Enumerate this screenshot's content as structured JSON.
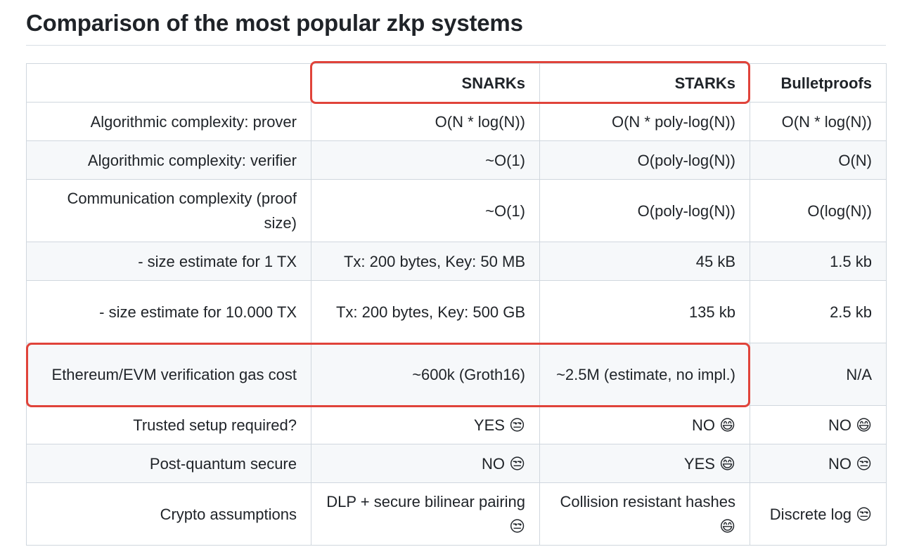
{
  "title": "Comparison of the most popular zkp systems",
  "headers": [
    "",
    "SNARKs",
    "STARKs",
    "Bulletproofs"
  ],
  "rows": [
    [
      "Algorithmic complexity: prover",
      "O(N * log(N))",
      "O(N * poly-log(N))",
      "O(N * log(N))"
    ],
    [
      "Algorithmic complexity: verifier",
      "~O(1)",
      "O(poly-log(N))",
      "O(N)"
    ],
    [
      "Communication complexity (proof size)",
      "~O(1)",
      "O(poly-log(N))",
      "O(log(N))"
    ],
    [
      "- size estimate for 1 TX",
      "Tx: 200 bytes, Key: 50 MB",
      "45 kB",
      "1.5 kb"
    ],
    [
      "- size estimate for 10.000 TX",
      "Tx: 200 bytes, Key: 500 GB",
      "135 kb",
      "2.5 kb"
    ],
    [
      "Ethereum/EVM verification gas cost",
      "~600k (Groth16)",
      "~2.5M (estimate, no impl.)",
      "N/A"
    ],
    [
      "Trusted setup required?",
      "YES 😒",
      "NO 😄",
      "NO 😄"
    ],
    [
      "Post-quantum secure",
      "NO 😒",
      "YES 😄",
      "NO 😒"
    ],
    [
      "Crypto assumptions",
      "DLP + secure bilinear pairing 😒",
      "Collision resistant hashes 😄",
      "Discrete log 😒"
    ]
  ],
  "highlight_color": "#e0433a"
}
